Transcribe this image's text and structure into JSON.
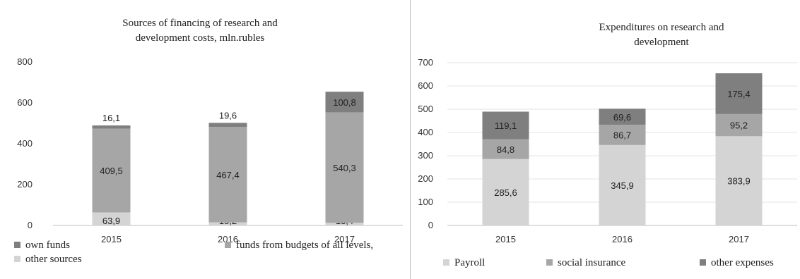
{
  "chart_data": [
    {
      "type": "bar",
      "stacked": true,
      "title": "Sources of financing of research and development costs, mln.rubles",
      "title_lines": [
        "Sources of financing of research and",
        "development costs, mln.rubles"
      ],
      "categories": [
        "2015",
        "2016",
        "2017"
      ],
      "ylim": [
        0,
        800
      ],
      "yticks": [
        "0",
        "200",
        "400",
        "600",
        "800"
      ],
      "grid": false,
      "legend_position": "bottom",
      "series": [
        {
          "name": "other sources",
          "values": [
            63.9,
            15.2,
            13.4
          ],
          "labels": [
            "63,9",
            "15,2",
            "13,4"
          ],
          "color": "#d4d4d4"
        },
        {
          "name": "funds from budgets of all levels,",
          "values": [
            409.5,
            467.4,
            540.3
          ],
          "labels": [
            "409,5",
            "467,4",
            "540,3"
          ],
          "color": "#a6a6a6"
        },
        {
          "name": "own funds",
          "values": [
            16.1,
            19.6,
            100.8
          ],
          "labels": [
            "16,1",
            "19,6",
            "100,8"
          ],
          "color": "#7f7f7f"
        }
      ]
    },
    {
      "type": "bar",
      "stacked": true,
      "title": "Expenditures on research and development",
      "title_lines": [
        "Expenditures on research and",
        "development"
      ],
      "categories": [
        "2015",
        "2016",
        "2017"
      ],
      "ylim": [
        0,
        700
      ],
      "yticks": [
        "0",
        "100",
        "200",
        "300",
        "400",
        "500",
        "600",
        "700"
      ],
      "grid": true,
      "legend_position": "bottom",
      "series": [
        {
          "name": "Payroll",
          "values": [
            285.6,
            345.9,
            383.9
          ],
          "labels": [
            "285,6",
            "345,9",
            "383,9"
          ],
          "color": "#d4d4d4"
        },
        {
          "name": "social insurance",
          "values": [
            84.8,
            86.7,
            95.2
          ],
          "labels": [
            "84,8",
            "86,7",
            "95,2"
          ],
          "color": "#a6a6a6"
        },
        {
          "name": "other expenses",
          "values": [
            119.1,
            69.6,
            175.4
          ],
          "labels": [
            "119,1",
            "69,6",
            "175,4"
          ],
          "color": "#7f7f7f"
        }
      ]
    }
  ]
}
